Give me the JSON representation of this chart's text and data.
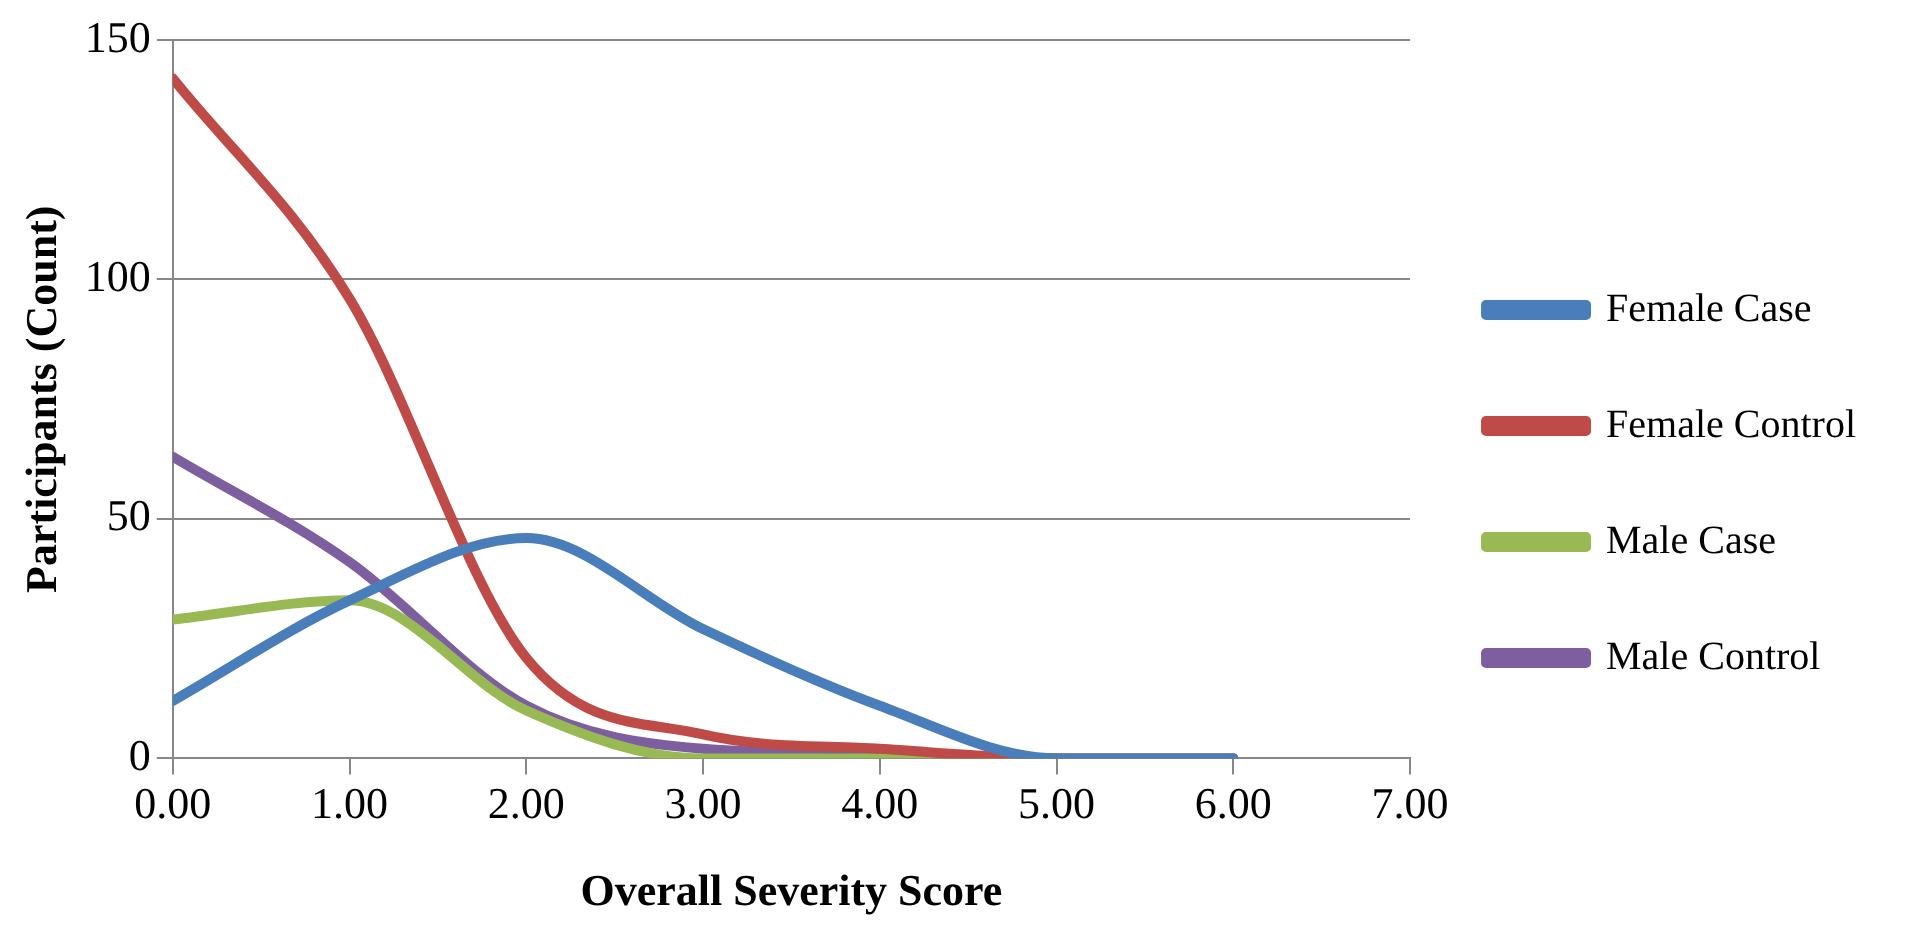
{
  "chart_data": {
    "type": "line",
    "xlabel": "Overall Severity Score",
    "ylabel": "Participants (Count)",
    "x": [
      0,
      1,
      2,
      3,
      4,
      5,
      6
    ],
    "series": [
      {
        "name": "Female Case",
        "color": "#4a7ebb",
        "values": [
          12,
          33,
          46,
          27,
          11,
          0,
          0
        ]
      },
      {
        "name": "Female Control",
        "color": "#be4b48",
        "values": [
          142,
          96,
          21,
          5,
          2,
          0,
          0
        ]
      },
      {
        "name": "Male Case",
        "color": "#98b954",
        "values": [
          29,
          33,
          10,
          0,
          0,
          0,
          0
        ]
      },
      {
        "name": "Male Control",
        "color": "#7d5fa0",
        "values": [
          63,
          41,
          11,
          2,
          1,
          0,
          0
        ]
      }
    ],
    "xlim": [
      0,
      7
    ],
    "xticks": [
      {
        "value": 0,
        "label": "0.00"
      },
      {
        "value": 1,
        "label": "1.00"
      },
      {
        "value": 2,
        "label": "2.00"
      },
      {
        "value": 3,
        "label": "3.00"
      },
      {
        "value": 4,
        "label": "4.00"
      },
      {
        "value": 5,
        "label": "5.00"
      },
      {
        "value": 6,
        "label": "6.00"
      },
      {
        "value": 7,
        "label": "7.00"
      }
    ],
    "ylim": [
      0,
      150
    ],
    "yticks": [
      0,
      50,
      100,
      150
    ],
    "grid": "y",
    "legend": "right",
    "marker": "none",
    "line_style": "solid"
  }
}
